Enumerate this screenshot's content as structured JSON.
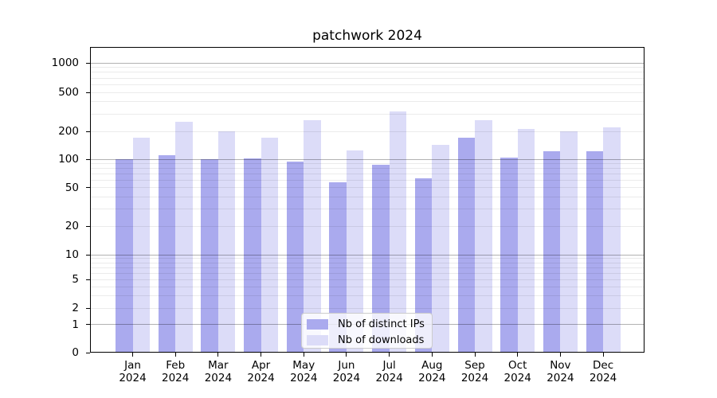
{
  "chart_data": {
    "type": "bar",
    "title": "patchwork 2024",
    "categories": [
      "Jan",
      "Feb",
      "Mar",
      "Apr",
      "May",
      "Jun",
      "Jul",
      "Aug",
      "Sep",
      "Oct",
      "Nov",
      "Dec"
    ],
    "year_label": "2024",
    "series": [
      {
        "name": "Nb of distinct IPs",
        "color": "#aaaaee",
        "values": [
          100,
          110,
          100,
          102,
          95,
          57,
          87,
          63,
          170,
          105,
          122,
          122
        ]
      },
      {
        "name": "Nb of downloads",
        "color": "#dcdcf8",
        "values": [
          170,
          250,
          200,
          170,
          260,
          125,
          320,
          142,
          260,
          210,
          200,
          220
        ]
      }
    ],
    "yticks": [
      0,
      1,
      2,
      5,
      10,
      20,
      50,
      100,
      200,
      500,
      1000
    ],
    "yscale": "symlog",
    "ylim": [
      0,
      1500
    ],
    "xlabel": "",
    "ylabel": "",
    "grid": true,
    "legend_position": "lower center"
  }
}
